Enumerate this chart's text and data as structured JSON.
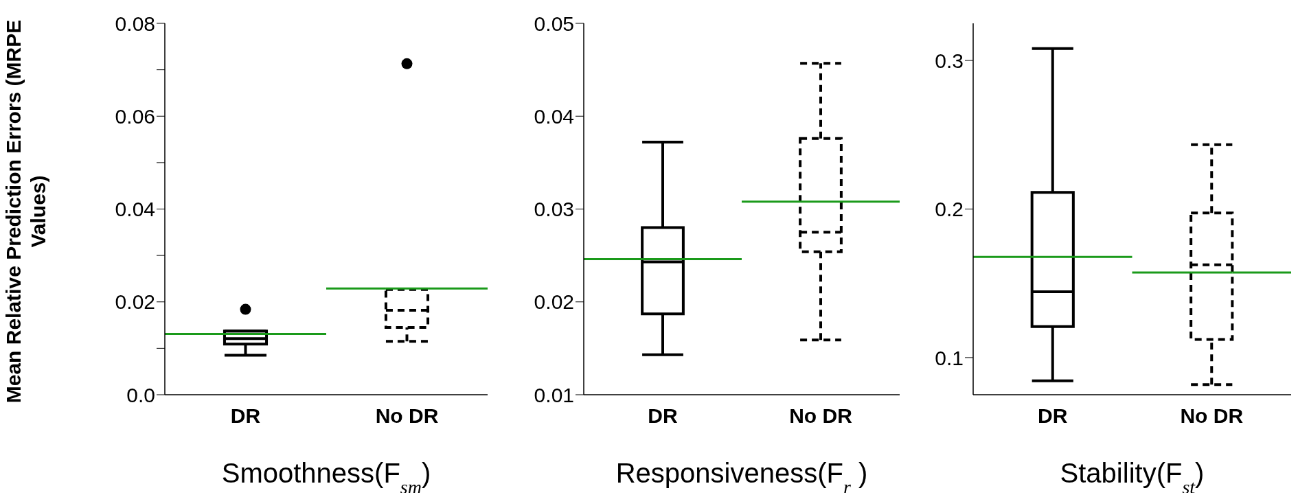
{
  "chart_data": [
    {
      "type": "box",
      "ylabel": "Mean Relative Prediction Errors (MRPE Values)",
      "xlabel": "Smoothness(F$_{sm}$)",
      "categories": [
        "DR",
        "No DR"
      ],
      "ylim": [
        0,
        0.08
      ],
      "yticks": [
        {
          "value": 0,
          "label": "0.0"
        },
        {
          "value": 0.01,
          "label": null
        },
        0.02,
        {
          "value": 0.03,
          "label": null
        },
        0.04,
        {
          "value": 0.05,
          "label": null
        },
        0.06,
        {
          "value": 0.07,
          "label": null
        },
        0.08
      ],
      "series": [
        {
          "color": "#000000",
          "line_style": "solid",
          "boxes": [
            {
              "low": 0.0085,
              "q1": 0.0109,
              "median": 0.0121,
              "q3": 0.0137,
              "high": 0.0137,
              "mean": 0.0131,
              "outliers": [
                0.0184
              ]
            },
            null
          ]
        },
        {
          "color": "#000000",
          "line_style": "dashed",
          "boxes": [
            null,
            {
              "low": 0.0115,
              "q1": 0.0145,
              "median": 0.0182,
              "q3": 0.0227,
              "high": 0.0227,
              "mean": 0.0229,
              "outliers": [
                0.0713
              ]
            }
          ]
        }
      ]
    },
    {
      "type": "box",
      "xlabel": "Responsiveness(F$_{r}$ )",
      "categories": [
        "DR",
        "No DR"
      ],
      "ylim": [
        0.01,
        0.05
      ],
      "yticks": [
        0.01,
        0.02,
        0.03,
        0.04,
        0.05
      ],
      "series": [
        {
          "color": "#000000",
          "line_style": "solid",
          "boxes": [
            {
              "low": 0.0143,
              "q1": 0.0187,
              "median": 0.0243,
              "q3": 0.028,
              "high": 0.0372,
              "mean": 0.0246
            },
            null
          ]
        },
        {
          "color": "#000000",
          "line_style": "dashed",
          "boxes": [
            null,
            {
              "low": 0.0159,
              "q1": 0.0254,
              "median": 0.0275,
              "q3": 0.0376,
              "high": 0.0457,
              "mean": 0.0308
            }
          ]
        }
      ]
    },
    {
      "type": "box",
      "xlabel": "Stability(F$_{st}$)",
      "categories": [
        "DR",
        "No DR"
      ],
      "ylim": [
        0.075,
        0.325
      ],
      "yticks": [
        0.1,
        0.2,
        0.3
      ],
      "series": [
        {
          "color": "#000000",
          "line_style": "solid",
          "boxes": [
            {
              "low": 0.0844,
              "q1": 0.1209,
              "median": 0.1443,
              "q3": 0.2112,
              "high": 0.308,
              "mean": 0.1678
            },
            null
          ]
        },
        {
          "color": "#000000",
          "line_style": "dashed",
          "boxes": [
            null,
            {
              "low": 0.0818,
              "q1": 0.1122,
              "median": 0.1625,
              "q3": 0.1973,
              "high": 0.2433,
              "mean": 0.1572
            }
          ]
        }
      ]
    }
  ]
}
